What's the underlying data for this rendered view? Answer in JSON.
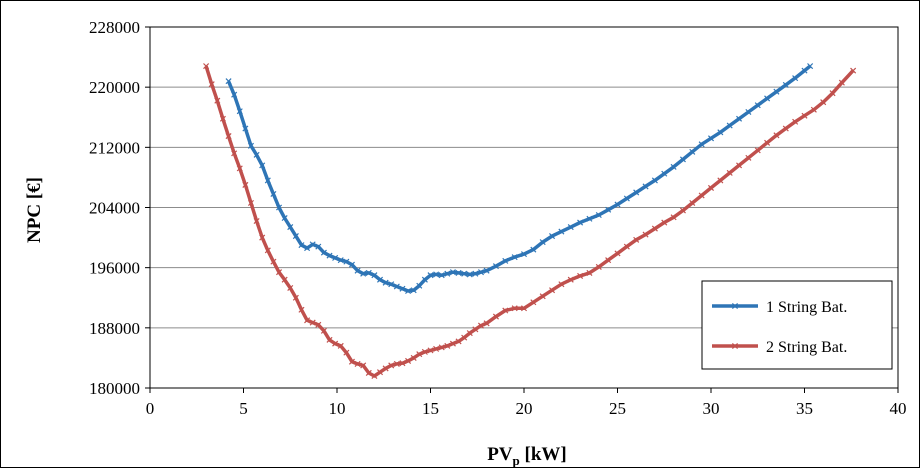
{
  "chart_data": {
    "type": "line",
    "title": "",
    "xlabel": "PV",
    "xlabel_sub": "p",
    "xlabel_unit": " [kW]",
    "ylabel": "NPC [€]",
    "xlim": [
      0,
      40
    ],
    "ylim": [
      180000,
      228000
    ],
    "x_ticks": [
      0,
      5,
      10,
      15,
      20,
      25,
      30,
      35,
      40
    ],
    "y_ticks": [
      180000,
      188000,
      196000,
      204000,
      212000,
      220000,
      228000
    ],
    "grid": "horizontal",
    "legend_position": "bottom-right",
    "series": [
      {
        "name": "1 String Bat.",
        "color": "#2E75B6",
        "marker": "x",
        "x": [
          4.2,
          4.5,
          4.8,
          5.1,
          5.4,
          5.7,
          6.0,
          6.3,
          6.6,
          6.9,
          7.2,
          7.5,
          7.8,
          8.1,
          8.4,
          8.7,
          9.0,
          9.3,
          9.6,
          9.9,
          10.2,
          10.5,
          10.8,
          11.1,
          11.4,
          11.7,
          12.0,
          12.3,
          12.6,
          12.9,
          13.2,
          13.5,
          13.8,
          14.1,
          14.4,
          14.7,
          15.0,
          15.3,
          15.6,
          15.9,
          16.2,
          16.5,
          16.8,
          17.1,
          17.4,
          17.7,
          18.0,
          18.5,
          19.0,
          19.5,
          20.0,
          20.5,
          21.0,
          21.5,
          22.0,
          22.5,
          23.0,
          23.5,
          24.0,
          24.5,
          25.0,
          25.5,
          26.0,
          26.5,
          27.0,
          27.5,
          28.0,
          28.5,
          29.0,
          29.5,
          30.0,
          30.5,
          31.0,
          31.5,
          32.0,
          32.5,
          33.0,
          33.5,
          34.0,
          34.5,
          35.0,
          35.3
        ],
        "y": [
          220800,
          219000,
          216800,
          214500,
          212200,
          211000,
          209600,
          207600,
          205800,
          204000,
          202600,
          201400,
          200200,
          199000,
          198600,
          199100,
          198800,
          198000,
          197600,
          197300,
          197000,
          196800,
          196400,
          195600,
          195200,
          195300,
          195000,
          194400,
          194000,
          193800,
          193500,
          193200,
          192900,
          193000,
          193600,
          194400,
          195000,
          195100,
          195000,
          195200,
          195400,
          195300,
          195200,
          195100,
          195200,
          195400,
          195600,
          196200,
          196900,
          197400,
          197800,
          198400,
          199400,
          200200,
          200800,
          201400,
          202000,
          202500,
          203000,
          203700,
          204400,
          205200,
          206000,
          206800,
          207600,
          208500,
          209400,
          210400,
          211400,
          212400,
          213200,
          214000,
          214900,
          215800,
          216700,
          217600,
          218500,
          219400,
          220300,
          221200,
          222200,
          222800
        ]
      },
      {
        "name": "2 String Bat.",
        "color": "#C0504D",
        "marker": "x",
        "x": [
          3.0,
          3.3,
          3.6,
          3.9,
          4.2,
          4.5,
          4.8,
          5.1,
          5.4,
          5.7,
          6.0,
          6.3,
          6.6,
          6.9,
          7.2,
          7.5,
          7.8,
          8.1,
          8.4,
          8.7,
          9.0,
          9.3,
          9.6,
          9.9,
          10.2,
          10.5,
          10.8,
          11.1,
          11.4,
          11.7,
          12.0,
          12.3,
          12.6,
          12.9,
          13.2,
          13.5,
          13.8,
          14.1,
          14.4,
          14.7,
          15.0,
          15.3,
          15.6,
          15.9,
          16.2,
          16.5,
          16.8,
          17.1,
          17.4,
          17.7,
          18.0,
          18.5,
          19.0,
          19.5,
          20.0,
          20.5,
          21.0,
          21.5,
          22.0,
          22.5,
          23.0,
          23.5,
          24.0,
          24.5,
          25.0,
          25.5,
          26.0,
          26.5,
          27.0,
          27.5,
          28.0,
          28.5,
          29.0,
          29.5,
          30.0,
          30.5,
          31.0,
          31.5,
          32.0,
          32.5,
          33.0,
          33.5,
          34.0,
          34.5,
          35.0,
          35.5,
          36.0,
          36.5,
          37.0,
          37.6
        ],
        "y": [
          222800,
          220400,
          218200,
          215800,
          213500,
          211200,
          209200,
          207000,
          204600,
          202200,
          200000,
          198300,
          196800,
          195400,
          194400,
          193300,
          192000,
          190400,
          189000,
          188700,
          188400,
          187600,
          186400,
          185900,
          185600,
          184700,
          183500,
          183200,
          183000,
          182000,
          181600,
          182100,
          182600,
          183000,
          183200,
          183300,
          183600,
          184000,
          184500,
          184800,
          185000,
          185200,
          185400,
          185600,
          185900,
          186200,
          186700,
          187300,
          187800,
          188300,
          188600,
          189500,
          190300,
          190600,
          190600,
          191400,
          192200,
          193000,
          193800,
          194400,
          194900,
          195300,
          196100,
          197000,
          197900,
          198800,
          199700,
          200400,
          201200,
          202000,
          202700,
          203600,
          204600,
          205600,
          206600,
          207600,
          208600,
          209600,
          210600,
          211600,
          212600,
          213600,
          214500,
          215400,
          216200,
          217000,
          218000,
          219200,
          220600,
          222200
        ]
      }
    ]
  }
}
